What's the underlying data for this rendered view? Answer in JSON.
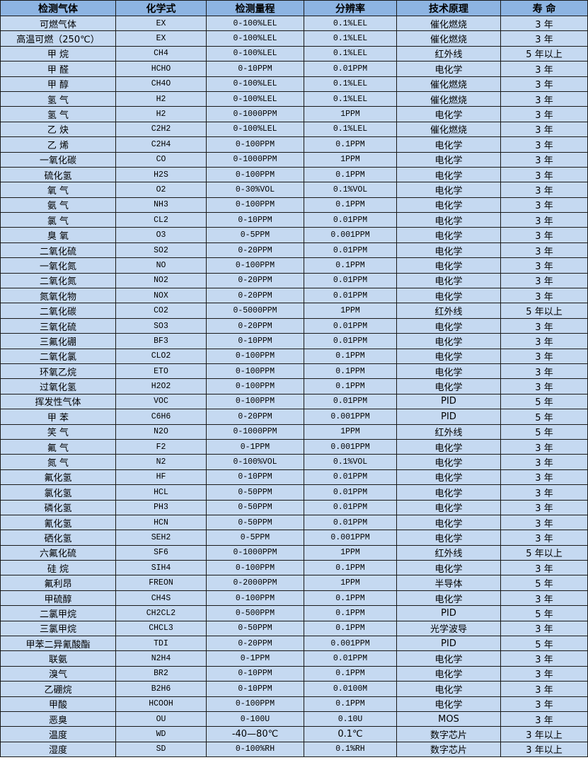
{
  "colors": {
    "header_bg": "#8db4e2",
    "row_bg": "#c5d9f1",
    "border": "#1a1a1a"
  },
  "table": {
    "headers": [
      "检测气体",
      "化学式",
      "检测量程",
      "分辨率",
      "技术原理",
      "寿 命"
    ],
    "rows": [
      [
        "可燃气体",
        "EX",
        "0-100%LEL",
        "0.1%LEL",
        "催化燃烧",
        "3 年"
      ],
      [
        "高温可燃（250℃）",
        "EX",
        "0-100%LEL",
        "0.1%LEL",
        "催化燃烧",
        "3 年"
      ],
      [
        "甲 烷",
        "CH4",
        "0-100%LEL",
        "0.1%LEL",
        "红外线",
        "5 年以上"
      ],
      [
        "甲 醛",
        "HCHO",
        "0-10PPM",
        "0.01PPM",
        "电化学",
        "3 年"
      ],
      [
        "甲 醇",
        "CH4O",
        "0-100%LEL",
        "0.1%LEL",
        "催化燃烧",
        "3 年"
      ],
      [
        "氢 气",
        "H2",
        "0-100%LEL",
        "0.1%LEL",
        "催化燃烧",
        "3 年"
      ],
      [
        "氢 气",
        "H2",
        "0-1000PPM",
        "1PPM",
        "电化学",
        "3 年"
      ],
      [
        "乙 炔",
        "C2H2",
        "0-100%LEL",
        "0.1%LEL",
        "催化燃烧",
        "3 年"
      ],
      [
        "乙 烯",
        "C2H4",
        "0-100PPM",
        "0.1PPM",
        "电化学",
        "3 年"
      ],
      [
        "一氧化碳",
        "CO",
        "0-1000PPM",
        "1PPM",
        "电化学",
        "3 年"
      ],
      [
        "硫化氢",
        "H2S",
        "0-100PPM",
        "0.1PPM",
        "电化学",
        "3 年"
      ],
      [
        "氧 气",
        "O2",
        "0-30%VOL",
        "0.1%VOL",
        "电化学",
        "3 年"
      ],
      [
        "氨 气",
        "NH3",
        "0-100PPM",
        "0.1PPM",
        "电化学",
        "3 年"
      ],
      [
        "氯 气",
        "CL2",
        "0-10PPM",
        "0.01PPM",
        "电化学",
        "3 年"
      ],
      [
        "臭 氧",
        "O3",
        "0-5PPM",
        "0.001PPM",
        "电化学",
        "3 年"
      ],
      [
        "二氧化硫",
        "SO2",
        "0-20PPM",
        "0.01PPM",
        "电化学",
        "3 年"
      ],
      [
        "一氧化氮",
        "NO",
        "0-100PPM",
        "0.1PPM",
        "电化学",
        "3 年"
      ],
      [
        "二氧化氮",
        "NO2",
        "0-20PPM",
        "0.01PPM",
        "电化学",
        "3 年"
      ],
      [
        "氮氧化物",
        "NOX",
        "0-20PPM",
        "0.01PPM",
        "电化学",
        "3 年"
      ],
      [
        "二氧化碳",
        "CO2",
        "0-5000PPM",
        "1PPM",
        "红外线",
        "5 年以上"
      ],
      [
        "三氧化硫",
        "SO3",
        "0-20PPM",
        "0.01PPM",
        "电化学",
        "3 年"
      ],
      [
        "三氟化硼",
        "BF3",
        "0-10PPM",
        "0.01PPM",
        "电化学",
        "3 年"
      ],
      [
        "二氧化氯",
        "CLO2",
        "0-100PPM",
        "0.1PPM",
        "电化学",
        "3 年"
      ],
      [
        "环氧乙烷",
        "ETO",
        "0-100PPM",
        "0.1PPM",
        "电化学",
        "3 年"
      ],
      [
        "过氧化氢",
        "H2O2",
        "0-100PPM",
        "0.1PPM",
        "电化学",
        "3 年"
      ],
      [
        "挥发性气体",
        "VOC",
        "0-100PPM",
        "0.01PPM",
        "PID",
        "5 年"
      ],
      [
        "甲 苯",
        "C6H6",
        "0-20PPM",
        "0.001PPM",
        "PID",
        "5 年"
      ],
      [
        "笑 气",
        "N2O",
        "0-1000PPM",
        "1PPM",
        "红外线",
        "5 年"
      ],
      [
        "氟 气",
        "F2",
        "0-1PPM",
        "0.001PPM",
        "电化学",
        "3 年"
      ],
      [
        "氮 气",
        "N2",
        "0-100%VOL",
        "0.1%VOL",
        "电化学",
        "3 年"
      ],
      [
        "氟化氢",
        "HF",
        "0-10PPM",
        "0.01PPM",
        "电化学",
        "3 年"
      ],
      [
        "氯化氢",
        "HCL",
        "0-50PPM",
        "0.01PPM",
        "电化学",
        "3 年"
      ],
      [
        "磷化氢",
        "PH3",
        "0-50PPM",
        "0.01PPM",
        "电化学",
        "3 年"
      ],
      [
        "氰化氢",
        "HCN",
        "0-50PPM",
        "0.01PPM",
        "电化学",
        "3 年"
      ],
      [
        "硒化氢",
        "SEH2",
        "0-5PPM",
        "0.001PPM",
        "电化学",
        "3 年"
      ],
      [
        "六氟化硫",
        "SF6",
        "0-1000PPM",
        "1PPM",
        "红外线",
        "5 年以上"
      ],
      [
        "硅 烷",
        "SIH4",
        "0-100PPM",
        "0.1PPM",
        "电化学",
        "3 年"
      ],
      [
        "氟利昂",
        "FREON",
        "0-2000PPM",
        "1PPM",
        "半导体",
        "5 年"
      ],
      [
        "甲硫醇",
        "CH4S",
        "0-100PPM",
        "0.1PPM",
        "电化学",
        "3 年"
      ],
      [
        "二氯甲烷",
        "CH2CL2",
        "0-500PPM",
        "0.1PPM",
        "PID",
        "5 年"
      ],
      [
        "三氯甲烷",
        "CHCL3",
        "0-50PPM",
        "0.1PPM",
        "光学波导",
        "3 年"
      ],
      [
        "甲苯二异氰酸酯",
        "TDI",
        "0-20PPM",
        "0.001PPM",
        "PID",
        "5 年"
      ],
      [
        "联氨",
        "N2H4",
        "0-1PPM",
        "0.01PPM",
        "电化学",
        "3 年"
      ],
      [
        "溴气",
        "BR2",
        "0-10PPM",
        "0.1PPM",
        "电化学",
        "3 年"
      ],
      [
        "乙硼烷",
        "B2H6",
        "0-10PPM",
        "0.0100M",
        "电化学",
        "3 年"
      ],
      [
        "甲酸",
        "HCOOH",
        "0-100PPM",
        "0.1PPM",
        "电化学",
        "3 年"
      ],
      [
        "恶臭",
        "OU",
        "0-100U",
        "0.10U",
        "MOS",
        "3 年"
      ],
      [
        "温度",
        "WD",
        "-40—80℃",
        "0.1℃",
        "数字芯片",
        "3 年以上"
      ],
      [
        "湿度",
        "SD",
        "0-100%RH",
        "0.1%RH",
        "数字芯片",
        "3 年以上"
      ]
    ]
  }
}
